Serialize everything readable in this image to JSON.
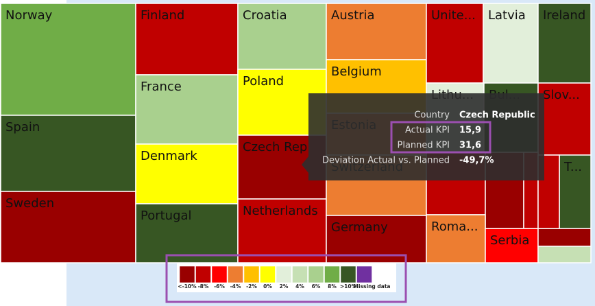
{
  "tiles": [
    {
      "label": "Norway",
      "color": "#70ad47"
    },
    {
      "label": "Spain",
      "color": "#375623"
    },
    {
      "label": "Sweden",
      "color": "#990000"
    },
    {
      "label": "Finland",
      "color": "#c00000"
    },
    {
      "label": "France",
      "color": "#a9d08e"
    },
    {
      "label": "Denmark",
      "color": "#ffff00"
    },
    {
      "label": "Portugal",
      "color": "#375623"
    },
    {
      "label": "Croatia",
      "color": "#a9d08e"
    },
    {
      "label": "Poland",
      "color": "#ffff00"
    },
    {
      "label": "Czech Rep",
      "color": "#990000"
    },
    {
      "label": "Netherlands",
      "color": "#c00000"
    },
    {
      "label": "Austria",
      "color": "#ed7d31"
    },
    {
      "label": "Belgium",
      "color": "#ffc000"
    },
    {
      "label": "Estonia",
      "color": "#ed7d31"
    },
    {
      "label": "Switzerland",
      "color": "#ed7d31"
    },
    {
      "label": "Germany",
      "color": "#990000"
    },
    {
      "label": "Unite...",
      "color": "#c00000"
    },
    {
      "label": "Latvia",
      "color": "#e2efda"
    },
    {
      "label": "Ireland",
      "color": "#375623"
    },
    {
      "label": "Lithu...",
      "color": "#e2efda"
    },
    {
      "label": "Bul...",
      "color": "#375623"
    },
    {
      "label": "Slov...",
      "color": "#c00000"
    },
    {
      "color": "#c00000"
    },
    {
      "color": "#990000"
    },
    {
      "color": "#c00000"
    },
    {
      "label": "T...",
      "color": "#375623"
    },
    {
      "label": "Roma...",
      "color": "#ed7d31"
    },
    {
      "label": "Serbia",
      "color": "#ff0000"
    },
    {
      "color": "#990000"
    },
    {
      "color": "#c6e0b4"
    }
  ],
  "tooltip": {
    "rows": [
      {
        "label": "Country",
        "value": "Czech Republic"
      },
      {
        "label": "Actual KPI",
        "value": "15,9"
      },
      {
        "label": "Planned KPI",
        "value": "31,6"
      },
      {
        "label": "Deviation Actual vs. Planned",
        "value": "-49,7%"
      }
    ]
  },
  "legend": {
    "items": [
      {
        "label": "<-10%",
        "color": "#990000"
      },
      {
        "label": "-8%",
        "color": "#c00000"
      },
      {
        "label": "-6%",
        "color": "#ff0000"
      },
      {
        "label": "-4%",
        "color": "#ed7d31"
      },
      {
        "label": "-2%",
        "color": "#ffc000"
      },
      {
        "label": "0%",
        "color": "#ffff00"
      },
      {
        "label": "2%",
        "color": "#e2efda"
      },
      {
        "label": "4%",
        "color": "#c6e0b4"
      },
      {
        "label": "6%",
        "color": "#a9d08e"
      },
      {
        "label": "8%",
        "color": "#70ad47"
      },
      {
        "label": ">10%",
        "color": "#375623"
      },
      {
        "label": "Missing data",
        "color": "#7030a0"
      }
    ]
  }
}
